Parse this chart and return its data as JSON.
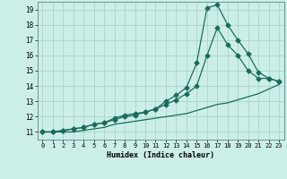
{
  "title": "",
  "xlabel": "Humidex (Indice chaleur)",
  "background_color": "#cceee8",
  "grid_color": "#aad4cc",
  "line_color": "#1a6b5a",
  "xlim": [
    -0.5,
    23.5
  ],
  "ylim": [
    10.5,
    19.5
  ],
  "xticks": [
    0,
    1,
    2,
    3,
    4,
    5,
    6,
    7,
    8,
    9,
    10,
    11,
    12,
    13,
    14,
    15,
    16,
    17,
    18,
    19,
    20,
    21,
    22,
    23
  ],
  "yticks": [
    11,
    12,
    13,
    14,
    15,
    16,
    17,
    18,
    19
  ],
  "line1_x": [
    0,
    1,
    2,
    3,
    4,
    5,
    6,
    7,
    8,
    9,
    10,
    11,
    12,
    13,
    14,
    15,
    16,
    17,
    18,
    19,
    20,
    21,
    22,
    23
  ],
  "line1_y": [
    11.0,
    11.0,
    11.0,
    11.0,
    11.1,
    11.2,
    11.3,
    11.5,
    11.6,
    11.7,
    11.8,
    11.9,
    12.0,
    12.1,
    12.2,
    12.4,
    12.6,
    12.8,
    12.9,
    13.1,
    13.3,
    13.5,
    13.8,
    14.1
  ],
  "line2_x": [
    0,
    1,
    2,
    3,
    4,
    5,
    6,
    7,
    8,
    9,
    10,
    11,
    12,
    13,
    14,
    15,
    16,
    17,
    18,
    19,
    20,
    21,
    22,
    23
  ],
  "line2_y": [
    11.0,
    11.0,
    11.1,
    11.2,
    11.3,
    11.5,
    11.6,
    11.8,
    12.0,
    12.1,
    12.3,
    12.5,
    12.8,
    13.1,
    13.5,
    14.0,
    16.0,
    17.8,
    16.7,
    16.0,
    15.0,
    14.5,
    14.5,
    14.3
  ],
  "line3_x": [
    0,
    1,
    2,
    3,
    4,
    5,
    6,
    7,
    8,
    9,
    10,
    11,
    12,
    13,
    14,
    15,
    16,
    17,
    18,
    19,
    20,
    21,
    22,
    23
  ],
  "line3_y": [
    11.0,
    11.0,
    11.1,
    11.2,
    11.3,
    11.5,
    11.6,
    11.9,
    12.1,
    12.2,
    12.3,
    12.5,
    13.0,
    13.4,
    13.9,
    15.5,
    19.1,
    19.3,
    18.0,
    17.0,
    16.1,
    14.9,
    14.5,
    14.3
  ],
  "marker": "D",
  "markersize": 2.5,
  "linewidth": 0.9
}
